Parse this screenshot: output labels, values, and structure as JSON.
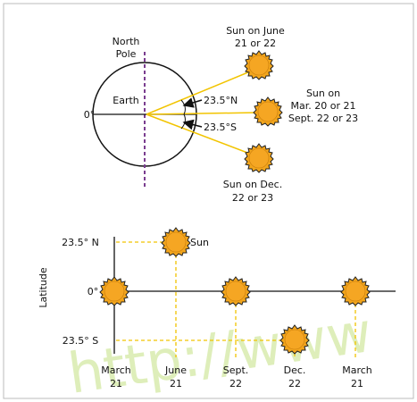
{
  "earth_view": {
    "pole_label": [
      "North",
      "Pole"
    ],
    "earth_label": "Earth",
    "equator_label": "0°",
    "north_angle": "23.5°N",
    "south_angle": "23.5°S",
    "june_sun": [
      "Sun on June",
      "21 or 22"
    ],
    "equinox_sun": [
      "Sun on",
      "Mar. 20 or 21",
      "Sept. 22 or 23"
    ],
    "december_sun": [
      "Sun on Dec.",
      "22 or 23"
    ]
  },
  "latitude_chart": {
    "axis_label": "Latitude",
    "north_label": "23.5° N",
    "equator_label": "0°",
    "south_label": "23.5° S",
    "sun_label": "Sun",
    "dates": [
      [
        "March",
        "21"
      ],
      [
        "June",
        "21"
      ],
      [
        "Sept.",
        "22"
      ],
      [
        "Dec.",
        "22"
      ],
      [
        "March",
        "21"
      ]
    ]
  },
  "watermark": "http://www"
}
